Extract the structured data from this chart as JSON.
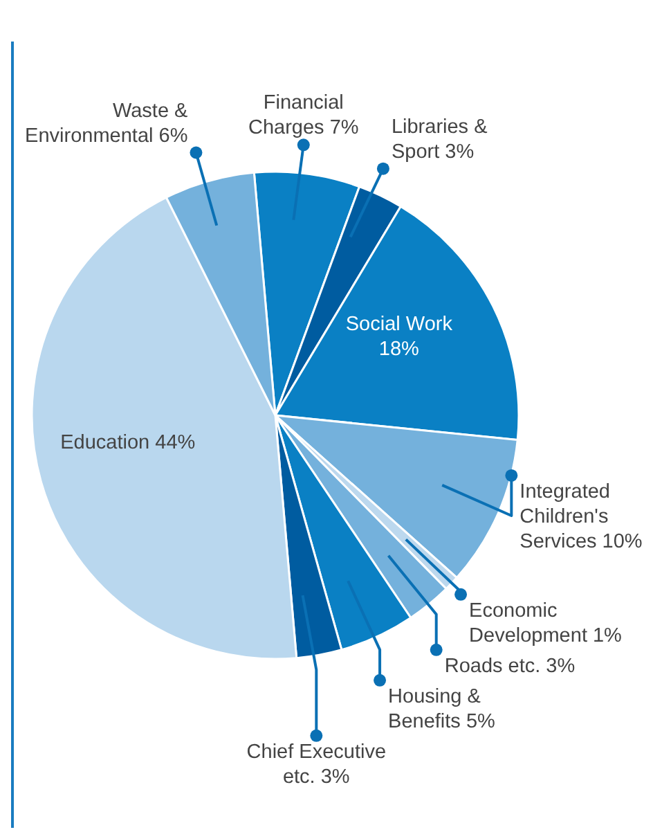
{
  "chart_data": {
    "type": "pie",
    "categories": [
      "Financial Charges",
      "Libraries & Sport",
      "Social Work",
      "Integrated Children's Services",
      "Economic Development",
      "Roads etc.",
      "Housing & Benefits",
      "Chief Executive etc.",
      "Education",
      "Waste & Environmental"
    ],
    "values": [
      7,
      3,
      18,
      10,
      1,
      3,
      5,
      3,
      44,
      6
    ],
    "colors": [
      "#0a80c4",
      "#005ca0",
      "#0a80c4",
      "#74b1dc",
      "#bcd8ee",
      "#74b1dc",
      "#0a80c4",
      "#005ca0",
      "#b9d7ee",
      "#74b1dc"
    ],
    "value_labels": [
      "7%",
      "3%",
      "18%",
      "10%",
      "1%",
      "3%",
      "5%",
      "3%",
      "44%",
      "6%"
    ]
  }
}
